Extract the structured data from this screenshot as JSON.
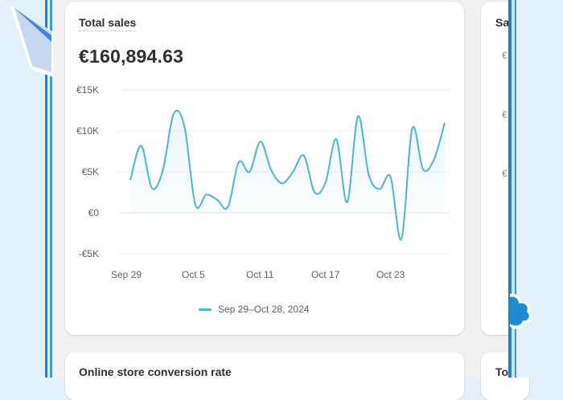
{
  "colors": {
    "page_bg": "#e3f1fd",
    "canvas_bg": "#f1f1f1",
    "card_bg": "#ffffff",
    "line": "#4fb6cf",
    "frame_dark": "#2f7fae",
    "frame_light": "#8fd0ea",
    "accent_blob": "#1f8ad2"
  },
  "main_card": {
    "title": "Total sales",
    "value": "€160,894.63",
    "legend_label": "Sep 29–Oct 28, 2024"
  },
  "right_card": {
    "title_partial": "Sa",
    "tick_partials": [
      "€",
      "€",
      "€"
    ]
  },
  "bottom_cards": {
    "left_title": "Online store conversion rate",
    "right_title_partial": "To"
  },
  "chart_data": {
    "type": "line",
    "title": "Total sales",
    "subtitle": "€160,894.63",
    "xlabel": "",
    "ylabel": "",
    "ylim": [
      -5000,
      15000
    ],
    "yticks": [
      15000,
      10000,
      5000,
      0,
      -5000
    ],
    "ytick_labels": [
      "€15K",
      "€10K",
      "€5K",
      "€0",
      "-€5K"
    ],
    "xtick_labels": [
      "Sep 29",
      "Oct 5",
      "Oct 11",
      "Oct 17",
      "Oct 23"
    ],
    "grid": true,
    "legend_position": "bottom",
    "legend": [
      "Sep 29–Oct 28, 2024"
    ],
    "x": [
      "Sep 29",
      "Sep 30",
      "Oct 1",
      "Oct 2",
      "Oct 3",
      "Oct 4",
      "Oct 5",
      "Oct 6",
      "Oct 7",
      "Oct 8",
      "Oct 9",
      "Oct 10",
      "Oct 11",
      "Oct 12",
      "Oct 13",
      "Oct 14",
      "Oct 15",
      "Oct 16",
      "Oct 17",
      "Oct 18",
      "Oct 19",
      "Oct 20",
      "Oct 21",
      "Oct 22",
      "Oct 23",
      "Oct 24",
      "Oct 25",
      "Oct 26",
      "Oct 27",
      "Oct 28"
    ],
    "series": [
      {
        "name": "Sep 29–Oct 28, 2024",
        "values": [
          4000,
          8200,
          3000,
          5200,
          12100,
          10500,
          1000,
          2200,
          1600,
          700,
          6200,
          5000,
          8700,
          5200,
          3600,
          5000,
          7000,
          2500,
          3700,
          9000,
          1300,
          11800,
          4600,
          2900,
          4400,
          -3200,
          10300,
          5300,
          6500,
          11000
        ]
      }
    ]
  }
}
